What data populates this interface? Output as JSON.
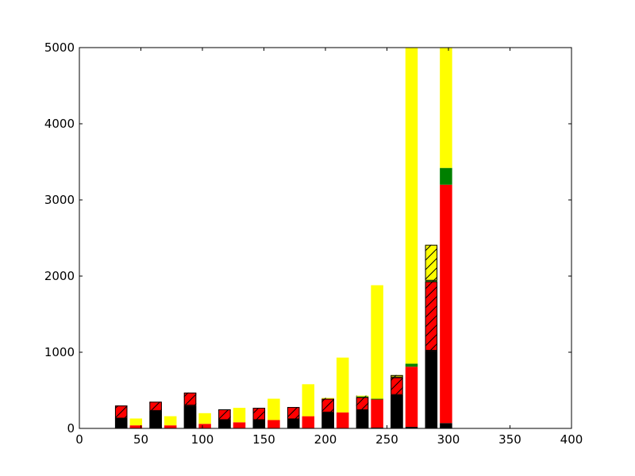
{
  "chart_data": {
    "type": "bar",
    "stacked": true,
    "title": "",
    "xlabel": "",
    "ylabel": "",
    "xlim": [
      0,
      400
    ],
    "ylim": [
      0,
      5000
    ],
    "x_ticks": [
      "0",
      "50",
      "100",
      "150",
      "200",
      "250",
      "300",
      "350",
      "400"
    ],
    "y_ticks": [
      "0",
      "1000",
      "2000",
      "3000",
      "4000",
      "5000"
    ],
    "grid": false,
    "legend": "none",
    "bar_width": 10,
    "groups": [
      {
        "name": "outlined-hatched",
        "outlined": true,
        "x": [
          34,
          62,
          90,
          118,
          146,
          174,
          202,
          230,
          258,
          286
        ],
        "segments": [
          {
            "color": "#000000",
            "hatched": false,
            "values": [
              130,
              230,
              300,
              110,
              110,
              120,
              210,
              240,
              440,
              1020
            ]
          },
          {
            "color": "#ff0000",
            "hatched": true,
            "values": [
              170,
              120,
              170,
              140,
              160,
              160,
              180,
              170,
              230,
              910
            ]
          },
          {
            "color": "#008000",
            "hatched": true,
            "values": [
              0,
              0,
              0,
              0,
              0,
              0,
              0,
              10,
              0,
              10
            ]
          },
          {
            "color": "#ffff00",
            "hatched": true,
            "values": [
              0,
              0,
              0,
              0,
              0,
              0,
              10,
              10,
              30,
              470
            ]
          }
        ]
      },
      {
        "name": "solid",
        "outlined": false,
        "x": [
          46,
          74,
          102,
          130,
          158,
          186,
          214,
          242,
          270,
          298
        ],
        "segments": [
          {
            "color": "#000000",
            "hatched": false,
            "values": [
              0,
              0,
              0,
              0,
              0,
              0,
              0,
              10,
              20,
              70
            ]
          },
          {
            "color": "#ff0000",
            "hatched": false,
            "values": [
              40,
              40,
              60,
              80,
              110,
              160,
              210,
              370,
              790,
              3130
            ]
          },
          {
            "color": "#008000",
            "hatched": false,
            "values": [
              0,
              0,
              0,
              0,
              0,
              0,
              0,
              10,
              40,
              220
            ]
          },
          {
            "color": "#ffff00",
            "hatched": false,
            "values": [
              90,
              120,
              140,
              190,
              280,
              420,
              720,
              1490,
              4150,
              1580
            ]
          }
        ]
      }
    ]
  }
}
